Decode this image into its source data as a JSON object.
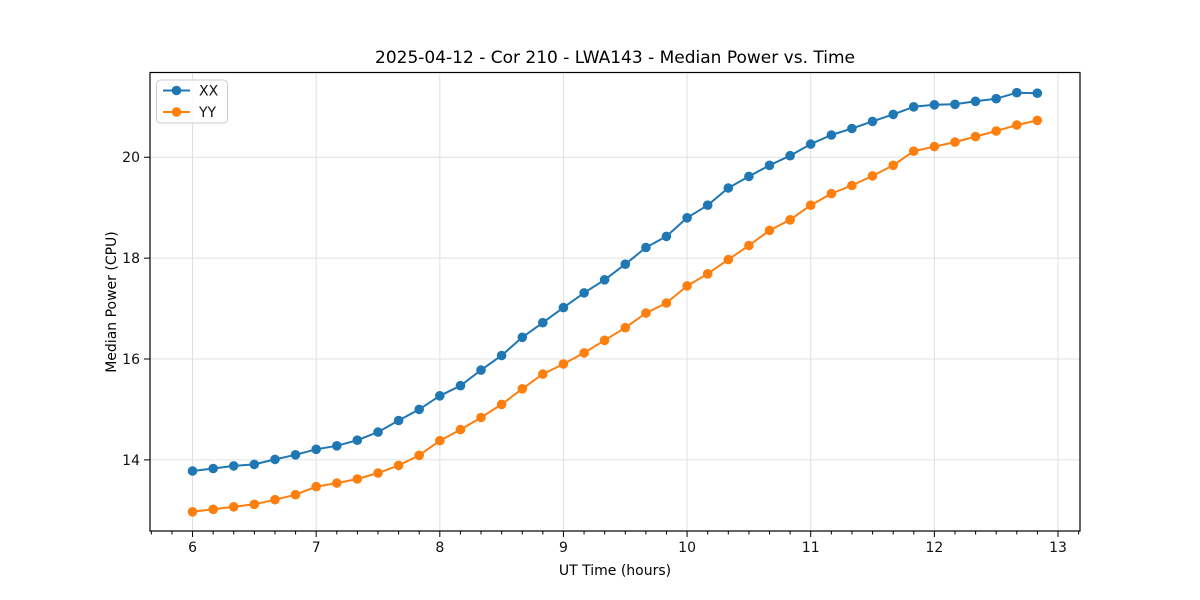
{
  "chart_data": {
    "type": "line",
    "title": "2025-04-12 - Cor 210 - LWA143 - Median Power vs. Time",
    "xlabel": "UT Time (hours)",
    "ylabel": "Median Power (CPU)",
    "xlim": [
      5.656,
      13.178
    ],
    "ylim": [
      12.59,
      21.68
    ],
    "xticks": [
      6,
      7,
      8,
      9,
      10,
      11,
      12,
      13
    ],
    "yticks": [
      14,
      16,
      18,
      20
    ],
    "x_minor_step": 0.16667,
    "grid": true,
    "legend_position": "upper left",
    "colors": {
      "grid": "#e0e0e0",
      "spine": "#000000",
      "tick": "#000000",
      "tick_label": "#111111",
      "legend_border": "#cccccc",
      "legend_bg": "#ffffff"
    },
    "x": [
      6.0,
      6.167,
      6.333,
      6.5,
      6.667,
      6.833,
      7.0,
      7.167,
      7.333,
      7.5,
      7.667,
      7.833,
      8.0,
      8.167,
      8.333,
      8.5,
      8.667,
      8.833,
      9.0,
      9.167,
      9.333,
      9.5,
      9.667,
      9.833,
      10.0,
      10.167,
      10.333,
      10.5,
      10.667,
      10.833,
      11.0,
      11.167,
      11.333,
      11.5,
      11.667,
      11.833,
      12.0,
      12.167,
      12.333,
      12.5,
      12.667,
      12.833
    ],
    "series": [
      {
        "name": "XX",
        "color": "#1f77b4",
        "marker": "circle",
        "values": [
          13.78,
          13.83,
          13.88,
          13.91,
          14.01,
          14.1,
          14.21,
          14.28,
          14.39,
          14.55,
          14.78,
          15.0,
          15.27,
          15.47,
          15.78,
          16.07,
          16.43,
          16.72,
          17.02,
          17.31,
          17.57,
          17.88,
          18.21,
          18.43,
          18.8,
          19.05,
          19.39,
          19.62,
          19.84,
          20.03,
          20.26,
          20.44,
          20.57,
          20.71,
          20.85,
          21.0,
          21.04,
          21.05,
          21.11,
          21.16,
          21.28,
          21.27
        ]
      },
      {
        "name": "YY",
        "color": "#ff7f0e",
        "marker": "circle",
        "values": [
          12.97,
          13.02,
          13.07,
          13.12,
          13.21,
          13.31,
          13.47,
          13.54,
          13.62,
          13.74,
          13.89,
          14.09,
          14.38,
          14.6,
          14.84,
          15.1,
          15.41,
          15.7,
          15.9,
          16.12,
          16.37,
          16.62,
          16.91,
          17.11,
          17.45,
          17.69,
          17.97,
          18.25,
          18.55,
          18.76,
          19.05,
          19.28,
          19.44,
          19.63,
          19.84,
          20.12,
          20.21,
          20.3,
          20.41,
          20.52,
          20.64,
          20.73
        ]
      }
    ]
  }
}
